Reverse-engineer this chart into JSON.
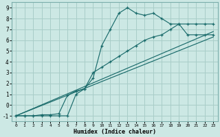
{
  "xlabel": "Humidex (Indice chaleur)",
  "background_color": "#cce8e4",
  "grid_color": "#a8cdc8",
  "line_color": "#1a6b6b",
  "xlim": [
    -0.5,
    23.5
  ],
  "ylim": [
    -1.5,
    9.5
  ],
  "xticks": [
    0,
    1,
    2,
    3,
    4,
    5,
    6,
    7,
    8,
    9,
    10,
    11,
    12,
    13,
    14,
    15,
    16,
    17,
    18,
    19,
    20,
    21,
    22,
    23
  ],
  "yticks": [
    -1,
    0,
    1,
    2,
    3,
    4,
    5,
    6,
    7,
    8,
    9
  ],
  "line1_x": [
    0,
    1,
    2,
    3,
    4,
    5,
    6,
    7,
    8,
    9,
    10,
    11,
    12,
    13,
    14,
    15,
    16,
    17,
    18,
    19,
    20,
    21,
    22,
    23
  ],
  "line1_y": [
    -1,
    -1,
    -1,
    -1,
    -1,
    -1,
    -1,
    1,
    1.5,
    2.5,
    5.5,
    7,
    8.5,
    9,
    8.5,
    8.3,
    8.5,
    8,
    7.5,
    7.5,
    6.5,
    6.5,
    6.5,
    6.5
  ],
  "line2_x": [
    0,
    1,
    2,
    3,
    4,
    5,
    6,
    7,
    8,
    9,
    10,
    11,
    12,
    13,
    14,
    15,
    16,
    17,
    18,
    19,
    20,
    21,
    22,
    23
  ],
  "line2_y": [
    -1,
    -1,
    -1,
    -0.9,
    -0.9,
    -0.8,
    0.9,
    1.3,
    1.5,
    3.0,
    3.5,
    4,
    4.5,
    5,
    5.5,
    6,
    6.3,
    6.5,
    7,
    7.5,
    7.5,
    7.5,
    7.5,
    7.5
  ],
  "line3_x": [
    0,
    23
  ],
  "line3_y": [
    -1,
    6.8
  ],
  "line4_x": [
    0,
    23
  ],
  "line4_y": [
    -1,
    6.3
  ]
}
